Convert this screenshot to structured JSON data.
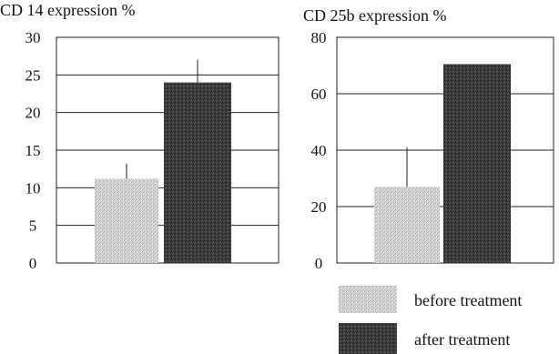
{
  "chart_data": [
    {
      "type": "bar",
      "title": "CD 14 expression %",
      "categories": [
        "before treatment",
        "after treatment"
      ],
      "values": [
        11.2,
        24.0
      ],
      "error_upper": [
        13.2,
        27.0
      ],
      "ylim": [
        0,
        30
      ],
      "yticks": [
        "30",
        "25",
        "20",
        "15",
        "10",
        "5",
        "0"
      ],
      "xlabel": "",
      "ylabel": "",
      "grid": true
    },
    {
      "type": "bar",
      "title": "CD 25b expression %",
      "categories": [
        "before treatment",
        "after treatment"
      ],
      "values": [
        27,
        70.5
      ],
      "error_upper": [
        41,
        70.5
      ],
      "ylim": [
        0,
        80
      ],
      "yticks": [
        "80",
        "60",
        "40",
        "20",
        "0"
      ],
      "xlabel": "",
      "ylabel": "",
      "grid": true
    }
  ],
  "legend": {
    "position": "bottom-right",
    "items": [
      {
        "label": "before treatment",
        "pattern": "light-gray-stipple"
      },
      {
        "label": "after treatment",
        "pattern": "dark-gray-stipple"
      }
    ]
  },
  "colors": {
    "before": "#c8c8c8",
    "after": "#3a3a3a"
  }
}
